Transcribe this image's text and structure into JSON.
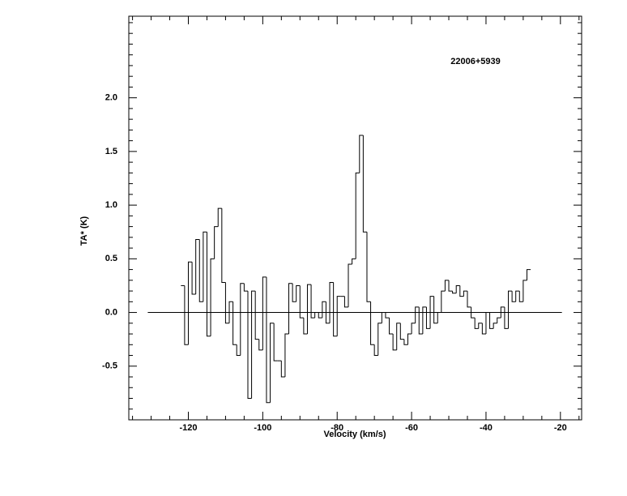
{
  "chart_data": {
    "type": "step",
    "title": "22006+5939",
    "xlabel": "Velocity (km/s)",
    "ylabel": "TA* (K)",
    "x": [
      -121.5,
      -120.5,
      -119.5,
      -118.5,
      -117.5,
      -116.5,
      -115.5,
      -114.5,
      -113.5,
      -112.5,
      -111.5,
      -110.5,
      -109.5,
      -108.5,
      -107.5,
      -106.5,
      -105.5,
      -104.5,
      -103.5,
      -102.5,
      -101.5,
      -100.5,
      -99.5,
      -98.5,
      -97.5,
      -96.5,
      -95.5,
      -94.5,
      -93.5,
      -92.5,
      -91.5,
      -90.5,
      -89.5,
      -88.5,
      -87.5,
      -86.5,
      -85.5,
      -84.5,
      -83.5,
      -82.5,
      -81.5,
      -80.5,
      -79.5,
      -78.5,
      -77.5,
      -76.5,
      -75.5,
      -74.5,
      -73.5,
      -72.5,
      -71.5,
      -70.5,
      -69.5,
      -68.5,
      -67.5,
      -66.5,
      -65.5,
      -64.5,
      -63.5,
      -62.5,
      -61.5,
      -60.5,
      -59.5,
      -58.5,
      -57.5,
      -56.5,
      -55.5,
      -54.5,
      -53.5,
      -52.5,
      -51.5,
      -50.5,
      -49.5,
      -48.5,
      -47.5,
      -46.5,
      -45.5,
      -44.5,
      -43.5,
      -42.5,
      -41.5,
      -40.5,
      -39.5,
      -38.5,
      -37.5,
      -36.5,
      -35.5,
      -34.5,
      -33.5,
      -32.5,
      -31.5,
      -30.5,
      -29.5,
      -28.5
    ],
    "values": [
      0.25,
      -0.3,
      0.47,
      0.17,
      0.68,
      0.1,
      0.75,
      -0.22,
      0.5,
      0.8,
      0.97,
      0.28,
      -0.1,
      0.1,
      -0.3,
      -0.4,
      0.27,
      0.2,
      -0.8,
      0.2,
      -0.25,
      -0.35,
      0.33,
      -0.84,
      -0.1,
      -0.45,
      -0.45,
      -0.6,
      -0.2,
      0.27,
      0.1,
      0.25,
      -0.05,
      -0.2,
      0.26,
      -0.05,
      0.0,
      -0.05,
      0.1,
      -0.1,
      0.28,
      -0.22,
      0.15,
      0.15,
      0.05,
      0.45,
      0.5,
      1.3,
      1.65,
      0.75,
      0.1,
      -0.3,
      -0.4,
      -0.1,
      0.0,
      -0.05,
      -0.2,
      -0.35,
      -0.1,
      -0.25,
      -0.3,
      -0.2,
      -0.1,
      0.05,
      -0.2,
      0.05,
      -0.15,
      0.15,
      -0.1,
      0.0,
      0.2,
      0.3,
      0.2,
      0.18,
      0.25,
      0.15,
      0.2,
      0.05,
      -0.05,
      -0.15,
      -0.1,
      -0.2,
      0.0,
      -0.15,
      -0.1,
      -0.05,
      0.05,
      -0.15,
      0.2,
      0.1,
      0.2,
      0.1,
      0.3,
      0.4
    ],
    "color": "#000000",
    "baseline": {
      "y": 0,
      "xlim": [
        -130.9,
        -19.6
      ]
    },
    "xlim": [
      -136,
      -14.3
    ],
    "ylim": [
      -1.0,
      2.76
    ],
    "xticks": [
      -120,
      -100,
      -80,
      -60,
      -40,
      -20
    ],
    "yticks": [
      -0.5,
      {
        "value": 0,
        "label": "0.0"
      },
      0.5,
      {
        "value": 1,
        "label": "1.0"
      },
      1.5,
      {
        "value": 2,
        "label": "2.0"
      }
    ],
    "xminorticks": [
      -135,
      -130,
      -125,
      -115,
      -110,
      -105,
      -95,
      -90,
      -85,
      -75,
      -70,
      -65,
      -55,
      -50,
      -45,
      -35,
      -30,
      -25,
      -15
    ],
    "yminorticks": [
      -0.9,
      -0.8,
      -0.7,
      -0.6,
      -0.4,
      -0.3,
      -0.2,
      -0.1,
      0.1,
      0.2,
      0.3,
      0.4,
      0.6,
      0.7,
      0.8,
      0.9,
      1.1,
      1.2,
      1.3,
      1.4,
      1.6,
      1.7,
      1.8,
      1.9,
      2.1,
      2.2,
      2.3,
      2.4,
      2.5,
      2.6,
      2.7
    ]
  }
}
